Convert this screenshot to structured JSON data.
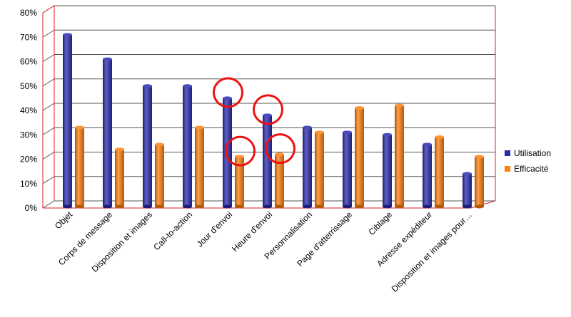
{
  "chart_data": {
    "type": "bar",
    "categories": [
      "Objet",
      "Corps de message",
      "Disposition et images",
      "Call-to-action",
      "Jour d'envoi",
      "Heure d'envoi",
      "Personnalisation",
      "Page d'atterrissage",
      "Ciblage",
      "Adresse expéditeur",
      "Disposition et images pour…"
    ],
    "series": [
      {
        "name": "Utilisation",
        "values": [
          71,
          61,
          50,
          50,
          45,
          38,
          33,
          31,
          30,
          26,
          14
        ],
        "color": "#2b2bb0"
      },
      {
        "name": "Efficacité",
        "values": [
          33,
          24,
          26,
          33,
          21,
          22,
          31,
          41,
          42,
          29,
          21
        ],
        "color": "#ff7f0e"
      }
    ],
    "yticks": [
      "0%",
      "10%",
      "20%",
      "30%",
      "40%",
      "50%",
      "60%",
      "70%",
      "80%"
    ],
    "ylim": [
      0,
      80
    ],
    "grid": true,
    "legend": "right",
    "highlighted": [
      {
        "category": "Jour d'envoi",
        "series": "Utilisation"
      },
      {
        "category": "Jour d'envoi",
        "series": "Efficacité"
      },
      {
        "category": "Heure d'envoi",
        "series": "Utilisation"
      },
      {
        "category": "Heure d'envoi",
        "series": "Efficacité"
      }
    ],
    "highlight_color": "#ee1111",
    "axis_color": "#dd2222"
  }
}
